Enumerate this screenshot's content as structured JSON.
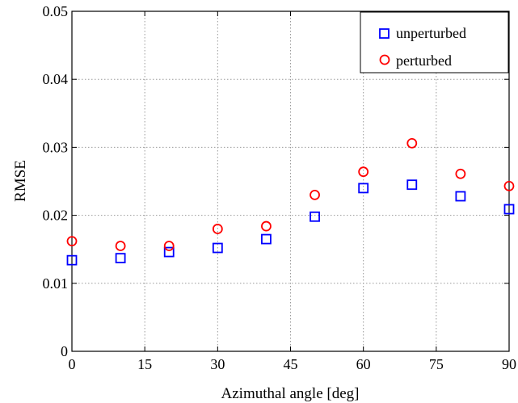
{
  "chart_data": {
    "type": "scatter",
    "xlabel": "Azimuthal angle [deg]",
    "ylabel": "RMSE",
    "xlim": [
      0,
      90
    ],
    "ylim": [
      0,
      0.05
    ],
    "xticks": [
      0,
      15,
      30,
      45,
      60,
      75,
      90
    ],
    "yticks": [
      0,
      0.01,
      0.02,
      0.03,
      0.04,
      0.05
    ],
    "xtick_labels": [
      "0",
      "15",
      "30",
      "45",
      "60",
      "75",
      "90"
    ],
    "ytick_labels": [
      "0",
      "0.01",
      "0.02",
      "0.03",
      "0.04",
      "0.05"
    ],
    "grid": true,
    "legend_position": "top-right",
    "series": [
      {
        "name": "unperturbed",
        "marker": "square",
        "color": "#0000ff",
        "x": [
          0,
          10,
          20,
          30,
          40,
          50,
          60,
          70,
          80,
          90
        ],
        "y": [
          0.0134,
          0.0137,
          0.0146,
          0.0152,
          0.0165,
          0.0198,
          0.024,
          0.0245,
          0.0228,
          0.0209
        ]
      },
      {
        "name": "perturbed",
        "marker": "circle",
        "color": "#ff0000",
        "x": [
          0,
          10,
          20,
          30,
          40,
          50,
          60,
          70,
          80,
          90
        ],
        "y": [
          0.0162,
          0.0155,
          0.0155,
          0.018,
          0.0184,
          0.023,
          0.0264,
          0.0306,
          0.0261,
          0.0243
        ]
      }
    ]
  }
}
